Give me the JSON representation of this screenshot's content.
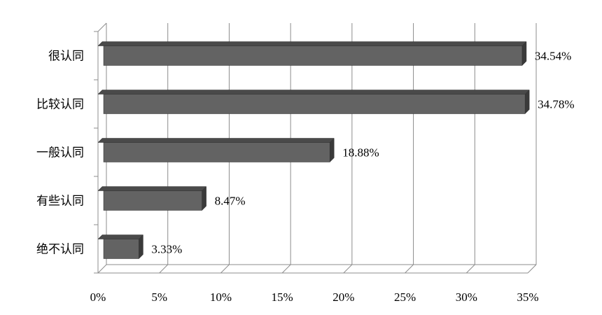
{
  "chart_data": {
    "type": "bar",
    "orientation": "horizontal",
    "style": "3d",
    "categories": [
      "很认同",
      "比较认同",
      "一般认同",
      "有些认同",
      "绝不认同"
    ],
    "values": [
      34.54,
      34.78,
      18.88,
      8.47,
      3.33
    ],
    "value_labels": [
      "34.54%",
      "34.78%",
      "18.88%",
      "8.47%",
      "3.33%"
    ],
    "x_ticks": [
      "0%",
      "5%",
      "10%",
      "15%",
      "20%",
      "25%",
      "30%",
      "35%"
    ],
    "xlim": [
      0,
      35
    ],
    "grid": true,
    "title": "",
    "xlabel": "",
    "ylabel": "",
    "colors": {
      "bar_front": "#636363",
      "bar_top": "#4a4a4a",
      "bar_side": "#3a3a3a",
      "bar_edge": "#2e2e2e",
      "grid": "#8c8c8c"
    }
  }
}
